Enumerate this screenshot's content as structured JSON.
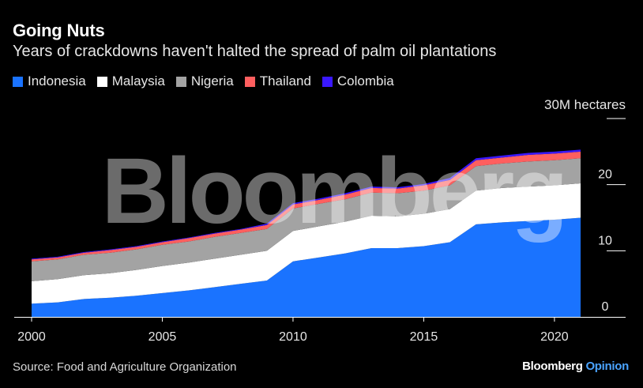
{
  "header": {
    "title": "Going Nuts",
    "subtitle": "Years of crackdowns haven't halted the spread of palm oil plantations"
  },
  "footer": {
    "source": "Source: Food and Agriculture Organization",
    "brand_main": "Bloomberg",
    "brand_sub": "Opinion"
  },
  "watermark": "Bloomberg",
  "chart_data": {
    "type": "area",
    "stacked": true,
    "unit_label": "30M hectares",
    "x": [
      2000,
      2001,
      2002,
      2003,
      2004,
      2005,
      2006,
      2007,
      2008,
      2009,
      2010,
      2011,
      2012,
      2013,
      2014,
      2015,
      2016,
      2017,
      2018,
      2019,
      2020,
      2021
    ],
    "x_ticks": [
      2000,
      2005,
      2010,
      2015,
      2020
    ],
    "y_ticks": [
      {
        "value": 0,
        "label": "0"
      },
      {
        "value": 10,
        "label": "10"
      },
      {
        "value": 20,
        "label": "20"
      },
      {
        "value": 30,
        "label": ""
      }
    ],
    "ylim": [
      0,
      30
    ],
    "legend_position": "top-left",
    "series": [
      {
        "name": "Indonesia",
        "color": "#1a73ff",
        "values": [
          2.0,
          2.2,
          2.7,
          2.9,
          3.2,
          3.6,
          4.0,
          4.5,
          5.0,
          5.5,
          8.4,
          9.0,
          9.6,
          10.4,
          10.4,
          10.7,
          11.3,
          14.0,
          14.3,
          14.5,
          14.7,
          15.0
        ]
      },
      {
        "name": "Malaysia",
        "color": "#ffffff",
        "values": [
          3.4,
          3.5,
          3.6,
          3.7,
          3.9,
          4.1,
          4.2,
          4.3,
          4.4,
          4.5,
          4.6,
          4.7,
          4.8,
          4.9,
          4.8,
          4.9,
          5.0,
          5.1,
          5.2,
          5.2,
          5.2,
          5.2
        ]
      },
      {
        "name": "Nigeria",
        "color": "#a3a3a3",
        "values": [
          3.0,
          3.0,
          3.1,
          3.1,
          3.1,
          3.2,
          3.2,
          3.3,
          3.3,
          3.3,
          3.4,
          3.4,
          3.4,
          3.5,
          3.5,
          3.5,
          3.6,
          3.7,
          3.7,
          3.8,
          3.8,
          3.8
        ]
      },
      {
        "name": "Thailand",
        "color": "#ff5f5f",
        "values": [
          0.3,
          0.3,
          0.3,
          0.4,
          0.4,
          0.4,
          0.5,
          0.5,
          0.5,
          0.6,
          0.6,
          0.6,
          0.7,
          0.7,
          0.7,
          0.8,
          0.8,
          0.9,
          0.9,
          1.0,
          1.0,
          1.0
        ]
      },
      {
        "name": "Colombia",
        "color": "#3a18ff",
        "values": [
          0.1,
          0.1,
          0.1,
          0.1,
          0.1,
          0.1,
          0.1,
          0.1,
          0.1,
          0.2,
          0.2,
          0.2,
          0.2,
          0.2,
          0.2,
          0.2,
          0.3,
          0.3,
          0.3,
          0.3,
          0.3,
          0.3
        ]
      }
    ]
  }
}
